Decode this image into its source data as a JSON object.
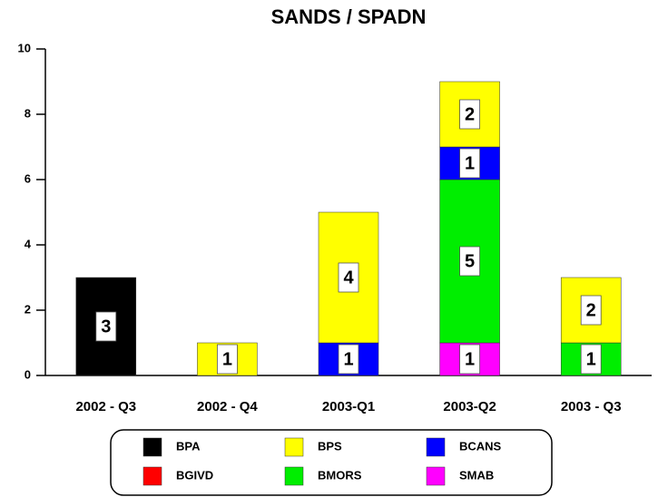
{
  "chart_data": {
    "type": "stacked_bar",
    "title": "SANDS / SPADN",
    "categories": [
      "2002 - Q3",
      "2002 - Q4",
      "2003-Q1",
      "2003-Q2",
      "2003 - Q3"
    ],
    "series": [
      {
        "name": "BPA",
        "color": "#000000",
        "values": [
          3,
          null,
          null,
          null,
          null
        ]
      },
      {
        "name": "BPS",
        "color": "#ffff00",
        "values": [
          null,
          1,
          4,
          2,
          2
        ]
      },
      {
        "name": "BCANS",
        "color": "#0000ff",
        "values": [
          null,
          null,
          1,
          1,
          null
        ]
      },
      {
        "name": "BGIVD",
        "color": "#ff0000",
        "values": [
          null,
          null,
          null,
          null,
          null
        ]
      },
      {
        "name": "BMORS",
        "color": "#00ee00",
        "values": [
          null,
          null,
          null,
          5,
          1
        ]
      },
      {
        "name": "SMAB",
        "color": "#ff00ff",
        "values": [
          null,
          null,
          null,
          1,
          null
        ]
      }
    ],
    "ylim": [
      0,
      10
    ],
    "yticks": [
      0,
      2,
      4,
      6,
      8,
      10
    ],
    "grid": false
  }
}
